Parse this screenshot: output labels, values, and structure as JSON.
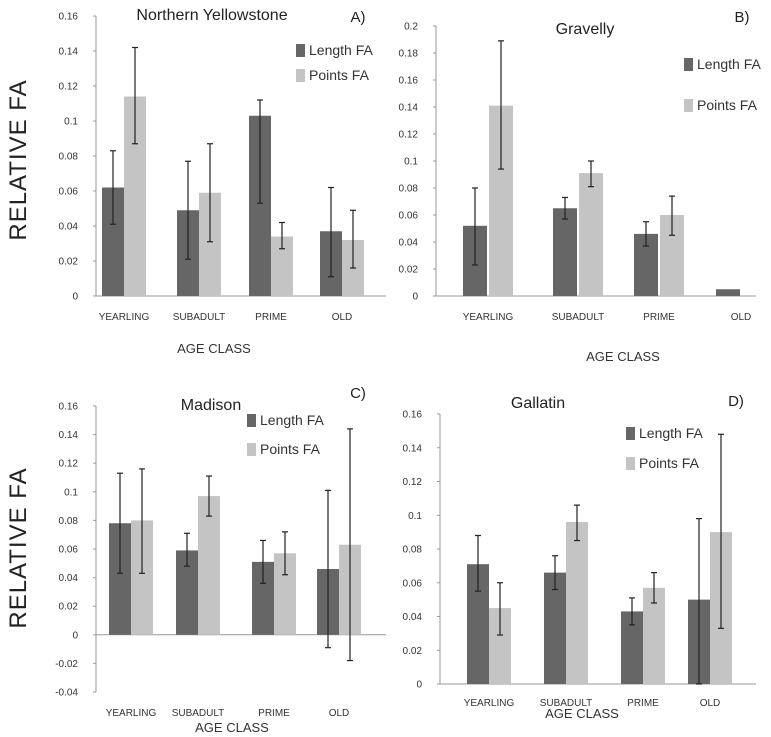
{
  "figure": {
    "ylabel": "RELATIVE  FA",
    "colors": {
      "length": "#666666",
      "points": "#c4c4c4",
      "axis": "#999999",
      "error": "#222222"
    }
  },
  "chart_data": [
    {
      "type": "bar",
      "title": "Northern Yellowstone",
      "panel_label": "A)",
      "xlabel": "AGE CLASS",
      "ylabel": "RELATIVE  FA",
      "categories": [
        "YEARLING",
        "SUBADULT",
        "PRIME",
        "OLD"
      ],
      "ylim": [
        0,
        0.16
      ],
      "yticks": [
        0,
        0.02,
        0.04,
        0.06,
        0.08,
        0.1,
        0.12,
        0.14,
        0.16
      ],
      "ytick_labels": [
        "0",
        "0.02",
        "0.04",
        "0.06",
        "0.08",
        "0.1",
        "0.12",
        "0.14",
        "0.16"
      ],
      "legend": "top-right",
      "series": [
        {
          "name": "Length FA",
          "values": [
            0.062,
            0.049,
            0.103,
            0.037
          ],
          "err_low": [
            0.041,
            0.021,
            0.053,
            0.011
          ],
          "err_high": [
            0.083,
            0.077,
            0.112,
            0.062
          ]
        },
        {
          "name": "Points FA",
          "values": [
            0.114,
            0.059,
            0.034,
            0.032
          ],
          "err_low": [
            0.087,
            0.031,
            0.027,
            0.016
          ],
          "err_high": [
            0.142,
            0.087,
            0.042,
            0.049
          ]
        }
      ]
    },
    {
      "type": "bar",
      "title": "Gravelly",
      "panel_label": "B)",
      "xlabel": "AGE CLASS",
      "categories": [
        "YEARLING",
        "SUBADULT",
        "PRIME",
        "OLD"
      ],
      "ylim": [
        0,
        0.2
      ],
      "yticks": [
        0,
        0.02,
        0.04,
        0.06,
        0.08,
        0.1,
        0.12,
        0.14,
        0.16,
        0.18,
        0.2
      ],
      "ytick_labels": [
        "0",
        "0.02",
        "0.04",
        "0.06",
        "0.08",
        "0.1",
        "0.12",
        "0.14",
        "0.16",
        "0.18",
        "0.2"
      ],
      "legend": "top-right",
      "series": [
        {
          "name": "Length FA",
          "values": [
            0.052,
            0.065,
            0.046,
            0.005
          ],
          "err_low": [
            0.023,
            0.057,
            0.037,
            null
          ],
          "err_high": [
            0.08,
            0.073,
            0.055,
            null
          ]
        },
        {
          "name": "Points FA",
          "values": [
            0.141,
            0.091,
            0.06,
            null
          ],
          "err_low": [
            0.094,
            0.081,
            0.045,
            null
          ],
          "err_high": [
            0.189,
            0.1,
            0.074,
            null
          ]
        }
      ]
    },
    {
      "type": "bar",
      "title": "Madison",
      "panel_label": "C)",
      "xlabel": "AGE CLASS",
      "ylabel": "RELATIVE  FA",
      "categories": [
        "YEARLING",
        "SUBADULT",
        "PRIME",
        "OLD"
      ],
      "ylim": [
        -0.04,
        0.16
      ],
      "yticks": [
        -0.04,
        -0.02,
        0,
        0.02,
        0.04,
        0.06,
        0.08,
        0.1,
        0.12,
        0.14,
        0.16
      ],
      "ytick_labels": [
        "-0.04",
        "-0.02",
        "0",
        "0.02",
        "0.04",
        "0.06",
        "0.08",
        "0.1",
        "0.12",
        "0.14",
        "0.16"
      ],
      "legend": "top-right",
      "series": [
        {
          "name": "Length FA",
          "values": [
            0.078,
            0.059,
            0.051,
            0.046
          ],
          "err_low": [
            0.043,
            0.048,
            0.036,
            -0.009
          ],
          "err_high": [
            0.113,
            0.071,
            0.066,
            0.101
          ]
        },
        {
          "name": "Points FA",
          "values": [
            0.08,
            0.097,
            0.057,
            0.063
          ],
          "err_low": [
            0.043,
            0.083,
            0.042,
            -0.018
          ],
          "err_high": [
            0.116,
            0.111,
            0.072,
            0.144
          ]
        }
      ]
    },
    {
      "type": "bar",
      "title": "Gallatin",
      "panel_label": "D)",
      "xlabel": "AGE CLASS",
      "categories": [
        "YEARLING",
        "SUBADULT",
        "PRIME",
        "OLD"
      ],
      "ylim": [
        0,
        0.16
      ],
      "yticks": [
        0,
        0.02,
        0.04,
        0.06,
        0.08,
        0.1,
        0.12,
        0.14,
        0.16
      ],
      "ytick_labels": [
        "0",
        "0.02",
        "0.04",
        "0.06",
        "0.08",
        "0.1",
        "0.12",
        "0.14",
        "0.16"
      ],
      "legend": "top-right",
      "series": [
        {
          "name": "Length FA",
          "values": [
            0.071,
            0.066,
            0.043,
            0.05
          ],
          "err_low": [
            0.055,
            0.056,
            0.035,
            0.0
          ],
          "err_high": [
            0.088,
            0.076,
            0.051,
            0.098
          ]
        },
        {
          "name": "Points FA",
          "values": [
            0.045,
            0.096,
            0.057,
            0.09
          ],
          "err_low": [
            0.029,
            0.085,
            0.048,
            0.033
          ],
          "err_high": [
            0.06,
            0.106,
            0.066,
            0.148
          ]
        }
      ]
    }
  ]
}
